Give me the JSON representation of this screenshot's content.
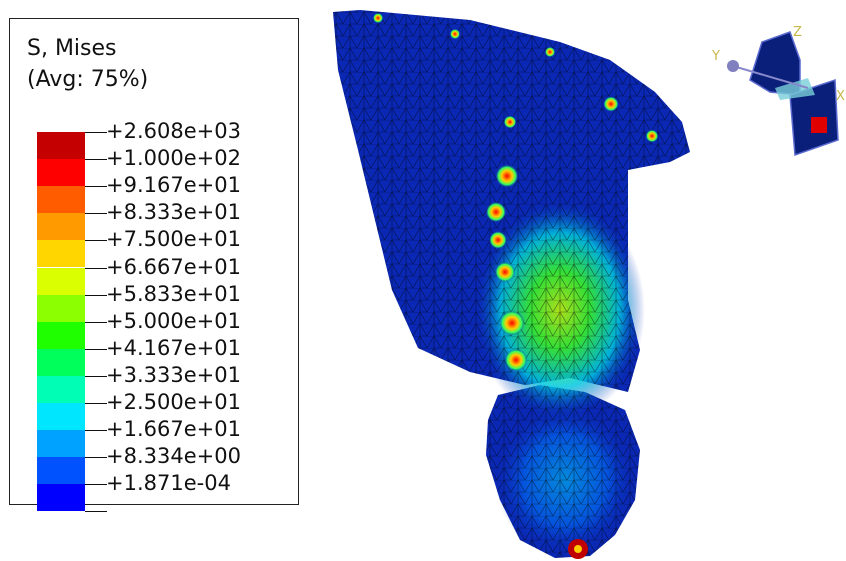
{
  "legend": {
    "title_line1": "S, Mises",
    "title_line2": "(Avg: 75%)",
    "levels": [
      {
        "label": "+2.608e+03",
        "color": "#c40000"
      },
      {
        "label": "+1.000e+02",
        "color": "#ff0000"
      },
      {
        "label": "+9.167e+01",
        "color": "#ff5c00"
      },
      {
        "label": "+8.333e+01",
        "color": "#ff9b00"
      },
      {
        "label": "+7.500e+01",
        "color": "#ffd600"
      },
      {
        "label": "+6.667e+01",
        "color": "#d9ff00"
      },
      {
        "label": "+5.833e+01",
        "color": "#8cff00"
      },
      {
        "label": "+5.000e+01",
        "color": "#20ff00"
      },
      {
        "label": "+4.167e+01",
        "color": "#00ff5a"
      },
      {
        "label": "+3.333e+01",
        "color": "#00ffb4"
      },
      {
        "label": "+2.500e+01",
        "color": "#00e6ff"
      },
      {
        "label": "+1.667e+01",
        "color": "#00a2ff"
      },
      {
        "label": "+8.334e+00",
        "color": "#0052ff"
      },
      {
        "label": "+1.871e-04",
        "color": "#0000ff"
      }
    ]
  },
  "triad": {
    "x_label": "X",
    "y_label": "Y",
    "z_label": "Z",
    "axis_color": "#c8b84a",
    "body_color": "#0a1f7a",
    "marker_color": "#e00000"
  },
  "model": {
    "base_color": "#0a28b4",
    "mesh_color": "#000000"
  }
}
